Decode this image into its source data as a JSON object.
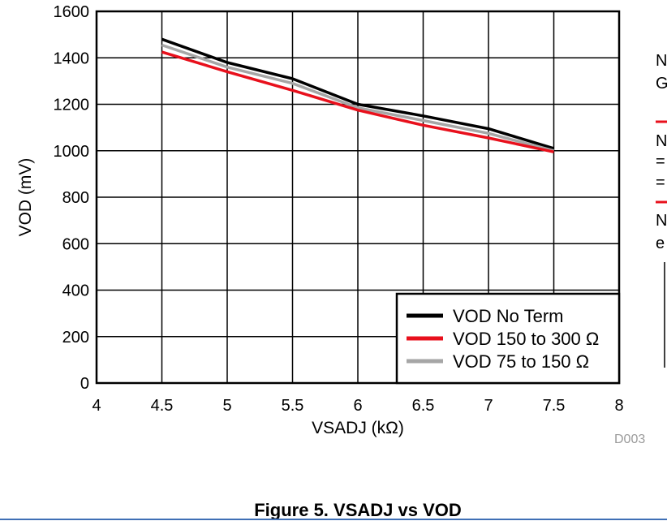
{
  "chart_data": {
    "type": "line",
    "title": "",
    "xlabel": "VSADJ (kΩ)",
    "ylabel": "VOD (mV)",
    "xlim": [
      4,
      8
    ],
    "ylim": [
      0,
      1600
    ],
    "x_ticks": [
      "4",
      "4.5",
      "5",
      "5.5",
      "6",
      "6.5",
      "7",
      "7.5",
      "8"
    ],
    "y_ticks": [
      "0",
      "200",
      "400",
      "600",
      "800",
      "1000",
      "1200",
      "1400",
      "1600"
    ],
    "grid": true,
    "legend_position": "bottom-right",
    "series": [
      {
        "name": "VOD No Term",
        "color": "#000000",
        "x": [
          4.5,
          5,
          5.5,
          6,
          6.5,
          7,
          7.5
        ],
        "y": [
          1480,
          1380,
          1310,
          1200,
          1150,
          1095,
          1010
        ]
      },
      {
        "name": "VOD 150 to 300 Ω",
        "color": "#e8101c",
        "x": [
          4.5,
          5,
          5.5,
          6,
          6.5,
          7,
          7.5
        ],
        "y": [
          1425,
          1340,
          1260,
          1175,
          1110,
          1055,
          995
        ]
      },
      {
        "name": "VOD 75 to 150 Ω",
        "color": "#a6a6a6",
        "x": [
          4.5,
          5,
          5.5,
          6,
          6.5,
          7,
          7.5
        ],
        "y": [
          1455,
          1360,
          1290,
          1185,
          1130,
          1075,
          1000
        ]
      }
    ]
  },
  "figure_code": "D003",
  "caption": "Figure 5. VSADJ vs VOD",
  "side_fragments": [
    "N",
    "G",
    "N",
    "=",
    "=",
    "N",
    "e"
  ]
}
